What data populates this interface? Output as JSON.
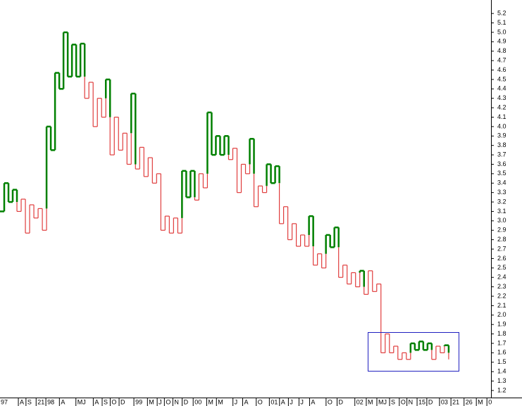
{
  "chart_data": {
    "type": "kagi",
    "values": [
      3.1,
      3.4,
      3.2,
      3.33,
      3.1,
      3.23,
      2.87,
      3.17,
      3.03,
      3.13,
      2.9,
      4.0,
      3.75,
      4.57,
      4.4,
      5.0,
      4.53,
      4.87,
      4.53,
      4.88,
      4.3,
      4.47,
      4.0,
      4.3,
      4.1,
      4.5,
      3.7,
      4.1,
      3.75,
      3.93,
      3.6,
      4.35,
      3.55,
      3.78,
      3.47,
      3.67,
      3.4,
      3.5,
      2.9,
      3.05,
      2.87,
      3.03,
      2.87,
      3.53,
      3.25,
      3.53,
      3.22,
      3.5,
      3.35,
      4.15,
      3.7,
      3.9,
      3.7,
      3.9,
      3.65,
      3.77,
      3.3,
      3.6,
      3.5,
      3.87,
      3.15,
      3.37,
      3.3,
      3.6,
      3.4,
      3.58,
      2.97,
      3.15,
      2.8,
      2.97,
      2.73,
      2.85,
      2.73,
      3.05,
      2.53,
      2.65,
      2.5,
      2.85,
      2.72,
      2.93,
      2.4,
      2.53,
      2.33,
      2.45,
      2.3,
      2.47,
      2.22,
      2.47,
      2.25,
      2.33,
      1.6,
      1.8,
      1.6,
      1.67,
      1.53,
      1.6,
      1.53,
      1.7,
      1.63,
      1.72,
      1.63,
      1.7,
      1.53,
      1.67,
      1.6,
      1.68,
      1.53
    ],
    "yang_color": "#008000",
    "yin_color": "#e03c3c",
    "box_color": "#2020c0",
    "xlim": [
      0,
      116
    ],
    "ylim": [
      1.125,
      5.343
    ],
    "yticks": [
      1.2,
      1.3,
      1.4,
      1.5,
      1.6,
      1.7,
      1.8,
      1.9,
      {
        "value": 2,
        "label": "2.0"
      },
      2.1,
      2.2,
      2.3,
      2.4,
      2.5,
      2.6,
      2.7,
      2.8,
      2.9,
      {
        "value": 3,
        "label": "3.0"
      },
      3.1,
      3.2,
      3.3,
      3.4,
      3.5,
      3.6,
      3.7,
      3.8,
      3.9,
      {
        "value": 4,
        "label": "4.0"
      },
      4.1,
      4.2,
      4.3,
      4.4,
      4.5,
      4.6,
      4.7,
      4.8,
      4.9,
      {
        "value": 5,
        "label": "5.0"
      },
      5.1,
      5.2
    ],
    "xticks": [
      {
        "value": 0.5,
        "label": "97"
      },
      {
        "value": 5,
        "label": "A"
      },
      {
        "value": 6.8,
        "label": "S"
      },
      {
        "value": 9.2,
        "label": "21"
      },
      {
        "value": 11.5,
        "label": "98"
      },
      {
        "value": 14.7,
        "label": "A"
      },
      {
        "value": 18.6,
        "label": "MJ"
      },
      {
        "value": 22.7,
        "label": "A"
      },
      {
        "value": 24.8,
        "label": "S"
      },
      {
        "value": 26.7,
        "label": "O"
      },
      {
        "value": 28.8,
        "label": "D"
      },
      {
        "value": 32.3,
        "label": "99"
      },
      {
        "value": 35.5,
        "label": "M"
      },
      {
        "value": 37.8,
        "label": "J"
      },
      {
        "value": 39.5,
        "label": "O"
      },
      {
        "value": 41.5,
        "label": "N"
      },
      {
        "value": 43.7,
        "label": "D"
      },
      {
        "value": 46.3,
        "label": "00"
      },
      {
        "value": 49.5,
        "label": "M"
      },
      {
        "value": 51.8,
        "label": "M"
      },
      {
        "value": 55.7,
        "label": "J"
      },
      {
        "value": 58,
        "label": "A"
      },
      {
        "value": 61.2,
        "label": "O"
      },
      {
        "value": 64.3,
        "label": "01"
      },
      {
        "value": 66.7,
        "label": "A"
      },
      {
        "value": 68.8,
        "label": "J"
      },
      {
        "value": 71.3,
        "label": "J"
      },
      {
        "value": 73.8,
        "label": "A"
      },
      {
        "value": 77.7,
        "label": "O"
      },
      {
        "value": 80.3,
        "label": "D"
      },
      {
        "value": 84.5,
        "label": "02"
      },
      {
        "value": 87.2,
        "label": "M"
      },
      {
        "value": 89.7,
        "label": "MJ"
      },
      {
        "value": 92.7,
        "label": "S"
      },
      {
        "value": 95,
        "label": "O"
      },
      {
        "value": 96.8,
        "label": "N"
      },
      {
        "value": 99.2,
        "label": "15"
      },
      {
        "value": 101.5,
        "label": "D"
      },
      {
        "value": 104.5,
        "label": "03"
      },
      {
        "value": 107.2,
        "label": "21"
      },
      {
        "value": 110.3,
        "label": "26"
      },
      {
        "value": 113.2,
        "label": "M"
      },
      {
        "value": 115.7,
        "label": "0"
      }
    ]
  }
}
